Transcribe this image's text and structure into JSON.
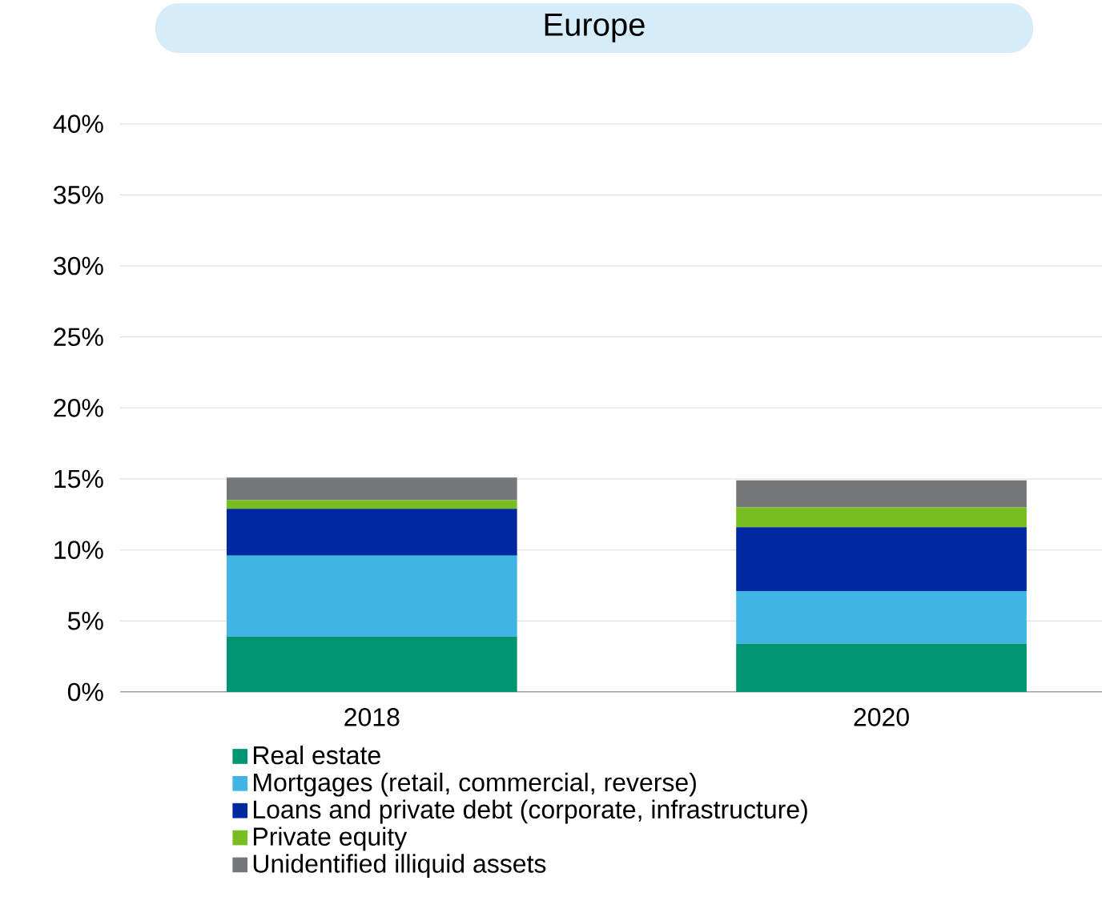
{
  "chart_data": {
    "type": "bar",
    "title": "Europe",
    "stacked": true,
    "categories": [
      "2018",
      "2020"
    ],
    "series": [
      {
        "name": "Real estate",
        "color": "#009473",
        "values": [
          3.9,
          3.4
        ]
      },
      {
        "name": "Mortgages (retail, commercial, reverse)",
        "color": "#41b4e6",
        "values": [
          5.7,
          3.7
        ]
      },
      {
        "name": "Loans and private debt (corporate, infrastructure)",
        "color": "#0028a0",
        "values": [
          3.3,
          4.5
        ]
      },
      {
        "name": "Private equity",
        "color": "#78be20",
        "values": [
          0.6,
          1.4
        ]
      },
      {
        "name": "Unidentified illiquid assets",
        "color": "#75787b",
        "values": [
          1.6,
          1.9
        ]
      }
    ],
    "ylim": [
      0,
      40
    ],
    "yticks": [
      {
        "value": 0,
        "label": "0%"
      },
      {
        "value": 5,
        "label": "5%"
      },
      {
        "value": 10,
        "label": "10%"
      },
      {
        "value": 15,
        "label": "15%"
      },
      {
        "value": 20,
        "label": "20%"
      },
      {
        "value": 25,
        "label": "25%"
      },
      {
        "value": 30,
        "label": "30%"
      },
      {
        "value": 35,
        "label": "35%"
      },
      {
        "value": 40,
        "label": "40%"
      }
    ],
    "grid": "y",
    "legend": "bottom"
  }
}
